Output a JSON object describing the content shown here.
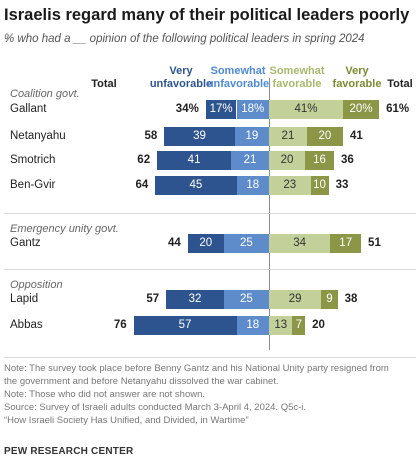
{
  "title": "Israelis regard many of their political leaders poorly",
  "subtitle": "% who had a __ opinion of the following political leaders in spring 2024",
  "headers": {
    "total_unfav": "Total",
    "very_unfav": "Very\nunfavorable",
    "somewhat_unfav": "Somewhat\nunfavorable",
    "somewhat_fav": "Somewhat\nfavorable",
    "very_fav": "Very\nfavorable",
    "total_fav": "Total"
  },
  "colors": {
    "very_unfavorable": "#2e5490",
    "somewhat_unfavorable": "#5e8ccb",
    "somewhat_favorable": "#c3d09a",
    "very_favorable": "#8b9646",
    "headers": {
      "very_unfavorable": "#2e5490",
      "somewhat_unfavorable": "#4f8ad3",
      "somewhat_favorable": "#a9b86f",
      "very_favorable": "#7c8a33"
    }
  },
  "chart_data": {
    "type": "bar",
    "orientation": "horizontal-diverging",
    "groups": [
      {
        "label": "Coalition govt.",
        "rows": [
          {
            "name": "Gallant",
            "very_unfavorable": 17,
            "somewhat_unfavorable": 18,
            "somewhat_favorable": 41,
            "very_favorable": 20,
            "total_unfavorable": 34,
            "total_favorable": 61,
            "very_unfavorable_label": "17%",
            "somewhat_unfavorable_label": "18%",
            "somewhat_favorable_label": "41%",
            "very_favorable_label": "20%",
            "total_unfavorable_label": "34%",
            "total_favorable_label": "61%"
          },
          {
            "name": "Netanyahu",
            "very_unfavorable": 39,
            "somewhat_unfavorable": 19,
            "somewhat_favorable": 21,
            "very_favorable": 20,
            "total_unfavorable": 58,
            "total_favorable": 41
          },
          {
            "name": "Smotrich",
            "very_unfavorable": 41,
            "somewhat_unfavorable": 21,
            "somewhat_favorable": 20,
            "very_favorable": 16,
            "total_unfavorable": 62,
            "total_favorable": 36
          },
          {
            "name": "Ben-Gvir",
            "very_unfavorable": 45,
            "somewhat_unfavorable": 18,
            "somewhat_favorable": 23,
            "very_favorable": 10,
            "total_unfavorable": 64,
            "total_favorable": 33
          }
        ]
      },
      {
        "label": "Emergency unity govt.",
        "rows": [
          {
            "name": "Gantz",
            "very_unfavorable": 20,
            "somewhat_unfavorable": 25,
            "somewhat_favorable": 34,
            "very_favorable": 17,
            "total_unfavorable": 44,
            "total_favorable": 51
          }
        ]
      },
      {
        "label": "Opposition",
        "rows": [
          {
            "name": "Lapid",
            "very_unfavorable": 32,
            "somewhat_unfavorable": 25,
            "somewhat_favorable": 29,
            "very_favorable": 9,
            "total_unfavorable": 57,
            "total_favorable": 38
          },
          {
            "name": "Abbas",
            "very_unfavorable": 57,
            "somewhat_unfavorable": 18,
            "somewhat_favorable": 13,
            "very_favorable": 7,
            "total_unfavorable": 76,
            "total_favorable": 20
          }
        ]
      }
    ]
  },
  "notes": [
    "Note: The survey took place before Benny Gantz and his National Unity party resigned from",
    "the government and before Netanyahu dissolved the war cabinet.",
    "Note: Those who did not answer are not shown.",
    "Source: Survey of Israeli adults conducted March 3-April 4, 2024. Q5c-i.",
    "“How Israeli Society Has Unified, and Divided, in Wartime”"
  ],
  "source": "PEW RESEARCH CENTER"
}
